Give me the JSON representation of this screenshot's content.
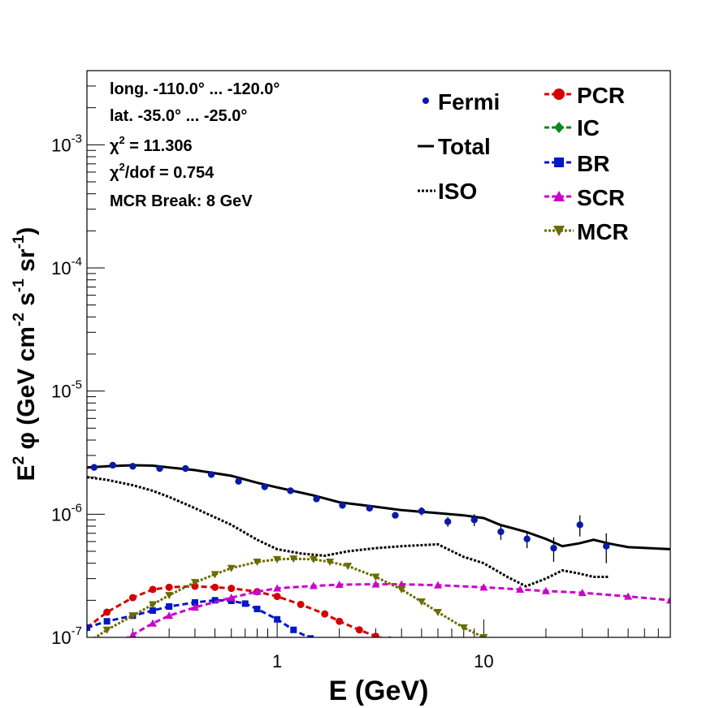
{
  "chart_data": {
    "type": "line",
    "x_scale": "log",
    "y_scale": "log",
    "xlim": [
      0.12,
      80
    ],
    "ylim": [
      1e-07,
      0.004
    ],
    "xlabel": "E (GeV)",
    "ylabel_parts": [
      "E",
      "2",
      " φ (GeV cm",
      "-2",
      " s",
      "-1",
      " sr",
      "-1",
      ")"
    ],
    "x_ticks": [
      {
        "value": 1,
        "label": "1"
      },
      {
        "value": 10,
        "label": "10"
      }
    ],
    "y_ticks": [
      {
        "value": 1e-07,
        "base": "10",
        "exp": "-7"
      },
      {
        "value": 1e-06,
        "base": "10",
        "exp": "-6"
      },
      {
        "value": 1e-05,
        "base": "10",
        "exp": "-5"
      },
      {
        "value": 0.0001,
        "base": "10",
        "exp": "-4"
      },
      {
        "value": 0.001,
        "base": "10",
        "exp": "-3"
      }
    ],
    "info": {
      "longitude": "long. -110.0° ... -120.0°",
      "latitude": "lat. -35.0° ... -25.0°",
      "chi2_symbol": "χ",
      "chi2_sup": "2",
      "chi2_value": " = 11.306",
      "chi2dof_value": "/dof = 0.754",
      "mcr_break": "MCR Break:  8 GeV"
    },
    "fermi": {
      "name": "Fermi",
      "color": "#0a1aa8",
      "points": [
        {
          "x": 0.13,
          "y": 2.4e-06,
          "err": 5e-08
        },
        {
          "x": 0.16,
          "y": 2.5e-06,
          "err": 5e-08
        },
        {
          "x": 0.2,
          "y": 2.45e-06,
          "err": 5e-08
        },
        {
          "x": 0.27,
          "y": 2.35e-06,
          "err": 5e-08
        },
        {
          "x": 0.36,
          "y": 2.35e-06,
          "err": 5e-08
        },
        {
          "x": 0.48,
          "y": 2.1e-06,
          "err": 5e-08
        },
        {
          "x": 0.65,
          "y": 1.85e-06,
          "err": 5e-08
        },
        {
          "x": 0.87,
          "y": 1.67e-06,
          "err": 5e-08
        },
        {
          "x": 1.16,
          "y": 1.55e-06,
          "err": 5e-08
        },
        {
          "x": 1.55,
          "y": 1.33e-06,
          "err": 5e-08
        },
        {
          "x": 2.07,
          "y": 1.18e-06,
          "err": 5e-08
        },
        {
          "x": 2.8,
          "y": 1.12e-06,
          "err": 5e-08
        },
        {
          "x": 3.73,
          "y": 9.8e-07,
          "err": 5e-08
        },
        {
          "x": 5.0,
          "y": 1.06e-06,
          "err": 8e-08
        },
        {
          "x": 6.7,
          "y": 8.7e-07,
          "err": 8e-08
        },
        {
          "x": 9.0,
          "y": 9e-07,
          "err": 1e-07
        },
        {
          "x": 12.1,
          "y": 7.2e-07,
          "err": 1e-07
        },
        {
          "x": 16.2,
          "y": 6.3e-07,
          "err": 1e-07
        },
        {
          "x": 21.8,
          "y": 5.3e-07,
          "err": 1.2e-07
        },
        {
          "x": 29.2,
          "y": 8.2e-07,
          "err": 1.6e-07
        },
        {
          "x": 39.2,
          "y": 5.5e-07,
          "err": 1.5e-07
        }
      ]
    },
    "series": [
      {
        "name": "Total",
        "color": "#000000",
        "style": "solid",
        "marker": "none",
        "x": [
          0.12,
          0.15,
          0.2,
          0.25,
          0.3,
          0.4,
          0.6,
          0.8,
          1.0,
          1.5,
          2.0,
          3.0,
          4.0,
          6.0,
          8.0,
          10.0,
          12.0,
          16.0,
          20.0,
          24.0,
          29.0,
          34.0,
          40.0,
          50.0,
          80.0
        ],
        "y": [
          2.4e-06,
          2.45e-06,
          2.5e-06,
          2.48e-06,
          2.4e-06,
          2.28e-06,
          2.05e-06,
          1.8e-06,
          1.65e-06,
          1.42e-06,
          1.25e-06,
          1.15e-06,
          1.08e-06,
          1.02e-06,
          9.8e-07,
          9.3e-07,
          8.2e-07,
          7.2e-07,
          6.3e-07,
          5.5e-07,
          5.8e-07,
          6.2e-07,
          5.8e-07,
          5.4e-07,
          5.2e-07
        ]
      },
      {
        "name": "ISO",
        "color": "#000000",
        "style": "dotted",
        "marker": "none",
        "x": [
          0.12,
          0.15,
          0.2,
          0.25,
          0.3,
          0.4,
          0.6,
          0.8,
          1.0,
          1.3,
          1.7,
          2.2,
          3.0,
          4.0,
          6.0,
          8.0,
          10.0,
          13.0,
          16.0,
          20.0,
          24.0,
          29.0,
          34.0,
          40.0
        ],
        "y": [
          2e-06,
          1.9e-06,
          1.72e-06,
          1.55e-06,
          1.38e-06,
          1.12e-06,
          8.2e-07,
          6.2e-07,
          5.2e-07,
          4.8e-07,
          4.6e-07,
          5e-07,
          5.3e-07,
          5.5e-07,
          5.7e-07,
          4.5e-07,
          4e-07,
          3.1e-07,
          2.6e-07,
          3e-07,
          3.5e-07,
          3.3e-07,
          3.1e-07,
          3.1e-07
        ]
      },
      {
        "name": "PCR",
        "color": "#d40000",
        "style": "dashed",
        "marker": "circle",
        "x": [
          0.12,
          0.15,
          0.2,
          0.25,
          0.3,
          0.4,
          0.5,
          0.6,
          0.8,
          1.0,
          1.3,
          1.7,
          2.0,
          2.5,
          3.0,
          3.5
        ],
        "y": [
          1.2e-07,
          1.6e-07,
          2.1e-07,
          2.45e-07,
          2.55e-07,
          2.6e-07,
          2.55e-07,
          2.5e-07,
          2.35e-07,
          2.15e-07,
          1.85e-07,
          1.55e-07,
          1.35e-07,
          1.15e-07,
          1.02e-07,
          9.5e-08
        ]
      },
      {
        "name": "IC",
        "color": "#0a8a1a",
        "style": "dashed",
        "marker": "diamond",
        "x": [],
        "y": []
      },
      {
        "name": "BR",
        "color": "#0018c8",
        "style": "dashed",
        "marker": "square",
        "x": [
          0.12,
          0.15,
          0.2,
          0.25,
          0.3,
          0.4,
          0.5,
          0.6,
          0.7,
          0.8,
          1.0,
          1.2,
          1.45
        ],
        "y": [
          1.2e-07,
          1.35e-07,
          1.5e-07,
          1.65e-07,
          1.78e-07,
          1.92e-07,
          2e-07,
          1.98e-07,
          1.88e-07,
          1.7e-07,
          1.4e-07,
          1.15e-07,
          9.8e-08
        ]
      },
      {
        "name": "SCR",
        "color": "#cc00cc",
        "style": "dashed",
        "marker": "triangle",
        "x": [
          0.12,
          0.15,
          0.2,
          0.25,
          0.3,
          0.4,
          0.6,
          0.8,
          1.0,
          1.5,
          2.0,
          3.0,
          4.0,
          6.0,
          10.0,
          15.0,
          20.0,
          30.0,
          50.0,
          80.0
        ],
        "y": [
          6e-08,
          8e-08,
          1.05e-07,
          1.3e-07,
          1.5e-07,
          1.75e-07,
          2.1e-07,
          2.35e-07,
          2.5e-07,
          2.62e-07,
          2.68e-07,
          2.7e-07,
          2.7e-07,
          2.65e-07,
          2.55e-07,
          2.45e-07,
          2.38e-07,
          2.3e-07,
          2.15e-07,
          2e-07
        ]
      },
      {
        "name": "MCR",
        "color": "#6b6b00",
        "style": "dotted",
        "marker": "triangle-down",
        "x": [
          0.12,
          0.15,
          0.2,
          0.25,
          0.3,
          0.4,
          0.5,
          0.6,
          0.8,
          1.0,
          1.2,
          1.5,
          1.8,
          2.2,
          3.0,
          4.0,
          5.0,
          6.0,
          8.0,
          10.0,
          12.0,
          14.0
        ],
        "y": [
          9e-08,
          1.15e-07,
          1.5e-07,
          1.85e-07,
          2.2e-07,
          2.8e-07,
          3.25e-07,
          3.65e-07,
          4.1e-07,
          4.3e-07,
          4.35e-07,
          4.3e-07,
          4.1e-07,
          3.8e-07,
          3.1e-07,
          2.45e-07,
          1.95e-07,
          1.6e-07,
          1.2e-07,
          1e-07,
          9e-08,
          8e-08
        ]
      }
    ]
  }
}
